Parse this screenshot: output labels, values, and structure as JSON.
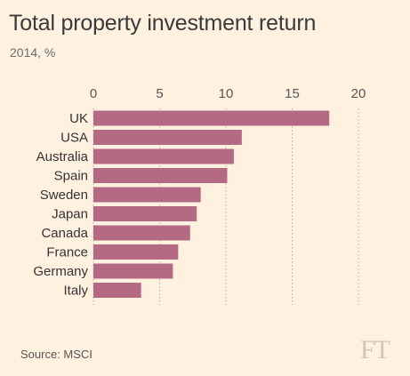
{
  "header": {
    "title": "Total property investment return",
    "subtitle": "2014, %"
  },
  "footer": {
    "source": "Source: MSCI",
    "logo": "FT"
  },
  "colors": {
    "background": "#fff1e0",
    "bar": "#b56a83",
    "grid": "#b9aea2",
    "text": "#333333"
  },
  "chart_data": {
    "type": "bar",
    "orientation": "horizontal",
    "title": "Total property investment return",
    "subtitle": "2014, %",
    "categories": [
      "UK",
      "USA",
      "Australia",
      "Spain",
      "Sweden",
      "Japan",
      "Canada",
      "France",
      "Germany",
      "Italy"
    ],
    "values": [
      17.8,
      11.2,
      10.6,
      10.1,
      8.1,
      7.8,
      7.3,
      6.4,
      6.0,
      3.6
    ],
    "xlim": [
      0,
      20
    ],
    "x_ticks": [
      0,
      5,
      10,
      15,
      20
    ],
    "tick_labels": [
      "0",
      "5",
      "10",
      "15",
      "20"
    ],
    "x_axis_position": "top",
    "grid": "dotted vertical",
    "legend": "none"
  }
}
